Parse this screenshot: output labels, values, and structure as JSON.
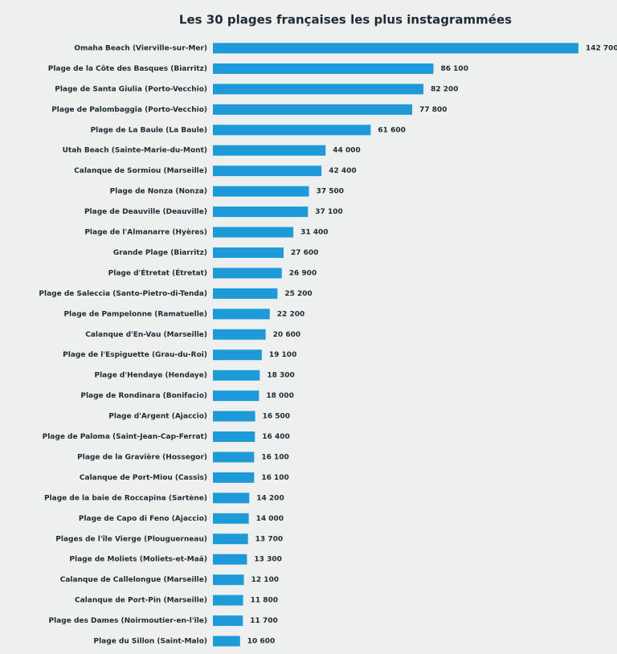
{
  "chart_data": {
    "type": "bar",
    "orientation": "horizontal",
    "title": "Les 30 plages françaises les plus instagrammées",
    "color": "#1e9ad8",
    "categories": [
      "Omaha Beach (Vierville-sur-Mer)",
      "Plage de la Côte des Basques (Biarritz)",
      "Plage de Santa Giulia (Porto-Vecchio)",
      "Plage de Palombaggia (Porto-Vecchio)",
      "Plage de La Baule (La Baule)",
      "Utah Beach (Sainte-Marie-du-Mont)",
      "Calanque de Sormiou (Marseille)",
      "Plage de Nonza (Nonza)",
      "Plage de Deauville (Deauville)",
      "Plage de l'Almanarre (Hyères)",
      "Grande Plage (Biarritz)",
      "Plage d'Étretat (Étretat)",
      "Plage de Saleccia (Santo-Pietro-di-Tenda)",
      "Plage de Pampelonne (Ramatuelle)",
      "Calanque d'En-Vau (Marseille)",
      "Plage de l'Espiguette (Grau-du-Roi)",
      "Plage d'Hendaye (Hendaye)",
      "Plage de Rondinara (Bonifacio)",
      "Plage d'Argent (Ajaccio)",
      "Plage de Paloma (Saint-Jean-Cap-Ferrat)",
      "Plage de la Gravière (Hossegor)",
      "Calanque de Port-Miou (Cassis)",
      "Plage de la baie de Roccapina (Sartène)",
      "Plage de Capo di Feno (Ajaccio)",
      "Plages de l'île Vierge (Plouguerneau)",
      "Plage de Moliets (Moliets-et-Maâ)",
      "Calanque de Callelongue (Marseille)",
      "Calanque de Port-Pin (Marseille)",
      "Plage des Dames (Noirmoutier-en-l'île)",
      "Plage du Sillon (Saint-Malo)"
    ],
    "values": [
      142700,
      86100,
      82200,
      77800,
      61600,
      44000,
      42400,
      37500,
      37100,
      31400,
      27600,
      26900,
      25200,
      22200,
      20600,
      19100,
      18300,
      18000,
      16500,
      16400,
      16100,
      16100,
      14200,
      14000,
      13700,
      13300,
      12100,
      11800,
      11700,
      10600
    ],
    "value_labels": [
      "142 700",
      "86 100",
      "82 200",
      "77 800",
      "61 600",
      "44 000",
      "42 400",
      "37 500",
      "37 100",
      "31 400",
      "27 600",
      "26 900",
      "25 200",
      "22 200",
      "20 600",
      "19 100",
      "18 300",
      "18 000",
      "16 500",
      "16 400",
      "16 100",
      "16 100",
      "14 200",
      "14 000",
      "13 700",
      "13 300",
      "12 100",
      "11 800",
      "11 700",
      "10 600"
    ]
  }
}
